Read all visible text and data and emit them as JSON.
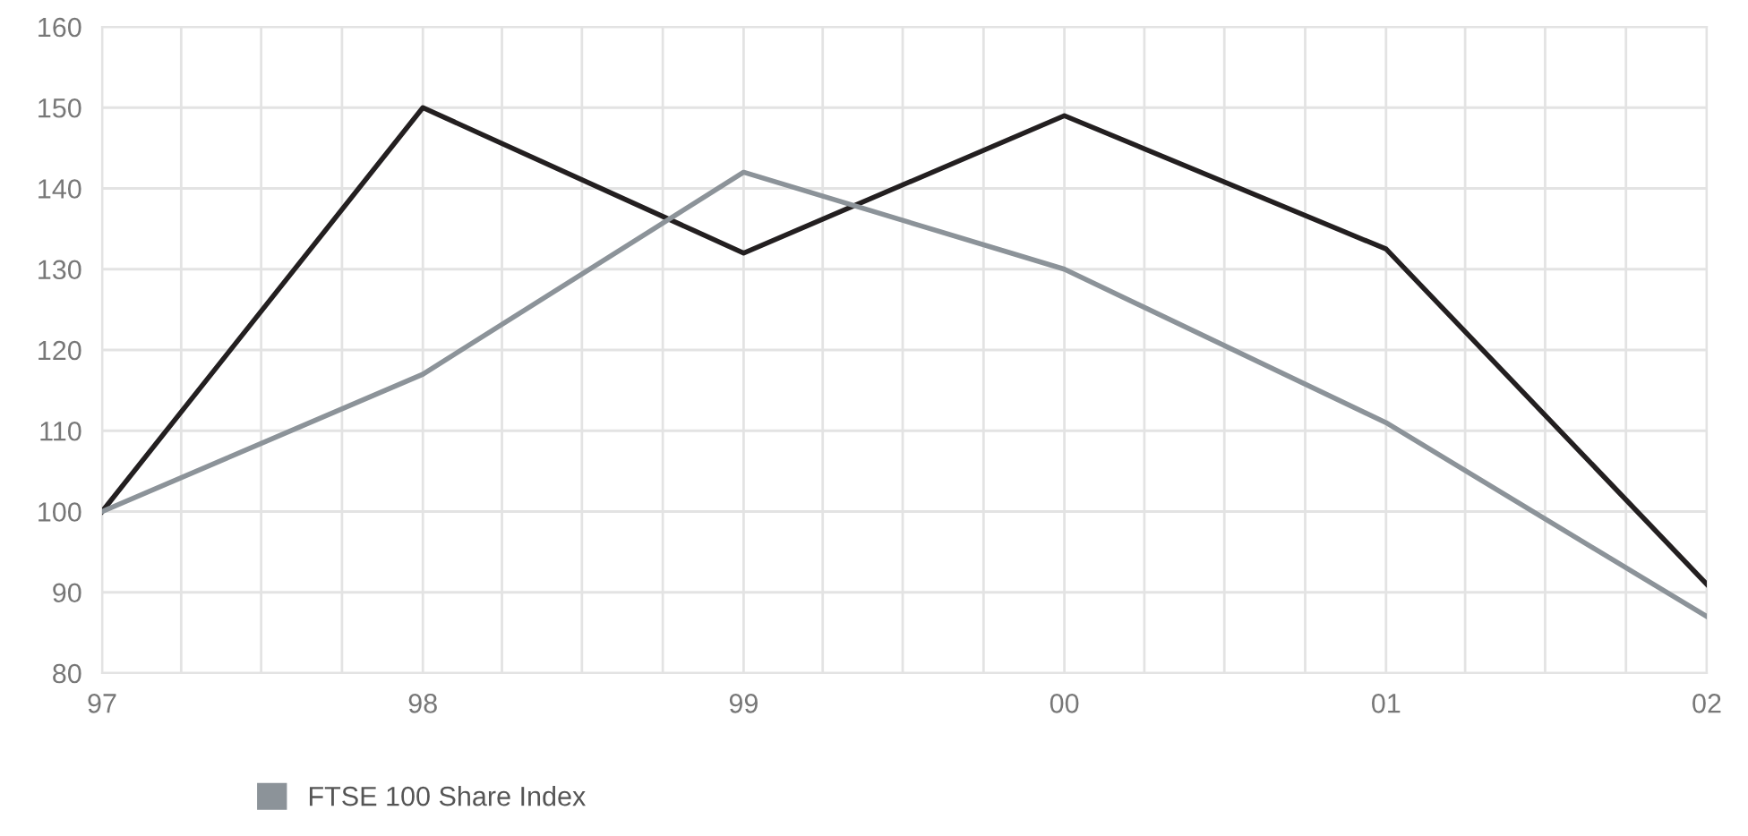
{
  "chart_data": {
    "type": "line",
    "x": [
      "1997-01-01",
      "1998-01-01",
      "1999-01-01",
      "2000-01-01",
      "2001-01-01",
      "2002-01-01"
    ],
    "series": [
      {
        "color": "#231f20",
        "values": [
          100,
          150,
          132,
          149,
          132.5,
          91
        ]
      },
      {
        "name": "FTSE 100 Share Index",
        "color": "#8c9399",
        "values": [
          100,
          117,
          142,
          130,
          111,
          87
        ]
      }
    ],
    "xlim": [
      "1997-01-01",
      "2002-01-01"
    ],
    "ylim": [
      80,
      160
    ],
    "xticks": [
      {
        "value": "1997-01-01",
        "label": "97"
      },
      {
        "value": "1997-04-01",
        "label": null
      },
      {
        "value": "1997-07-01",
        "label": null
      },
      {
        "value": "1997-10-01",
        "label": null
      },
      {
        "value": "1998-01-01",
        "label": "98"
      },
      {
        "value": "1998-04-01",
        "label": null
      },
      {
        "value": "1998-07-01",
        "label": null
      },
      {
        "value": "1998-10-01",
        "label": null
      },
      {
        "value": "1999-01-01",
        "label": "99"
      },
      {
        "value": "1999-04-01",
        "label": null
      },
      {
        "value": "1999-07-01",
        "label": null
      },
      {
        "value": "1999-10-01",
        "label": null
      },
      {
        "value": "2000-01-01",
        "label": "00"
      },
      {
        "value": "2000-04-01",
        "label": null
      },
      {
        "value": "2000-07-01",
        "label": null
      },
      {
        "value": "2000-10-01",
        "label": null
      },
      {
        "value": "2001-01-01",
        "label": "01"
      },
      {
        "value": "2001-04-01",
        "label": null
      },
      {
        "value": "2001-07-01",
        "label": null
      },
      {
        "value": "2001-10-01",
        "label": null
      },
      {
        "value": "2002-01-01",
        "label": "02"
      }
    ],
    "yticks": [
      80,
      90,
      100,
      110,
      120,
      130,
      140,
      150,
      160
    ],
    "grid": true,
    "legend": "bottom left",
    "line_style": "solid"
  }
}
